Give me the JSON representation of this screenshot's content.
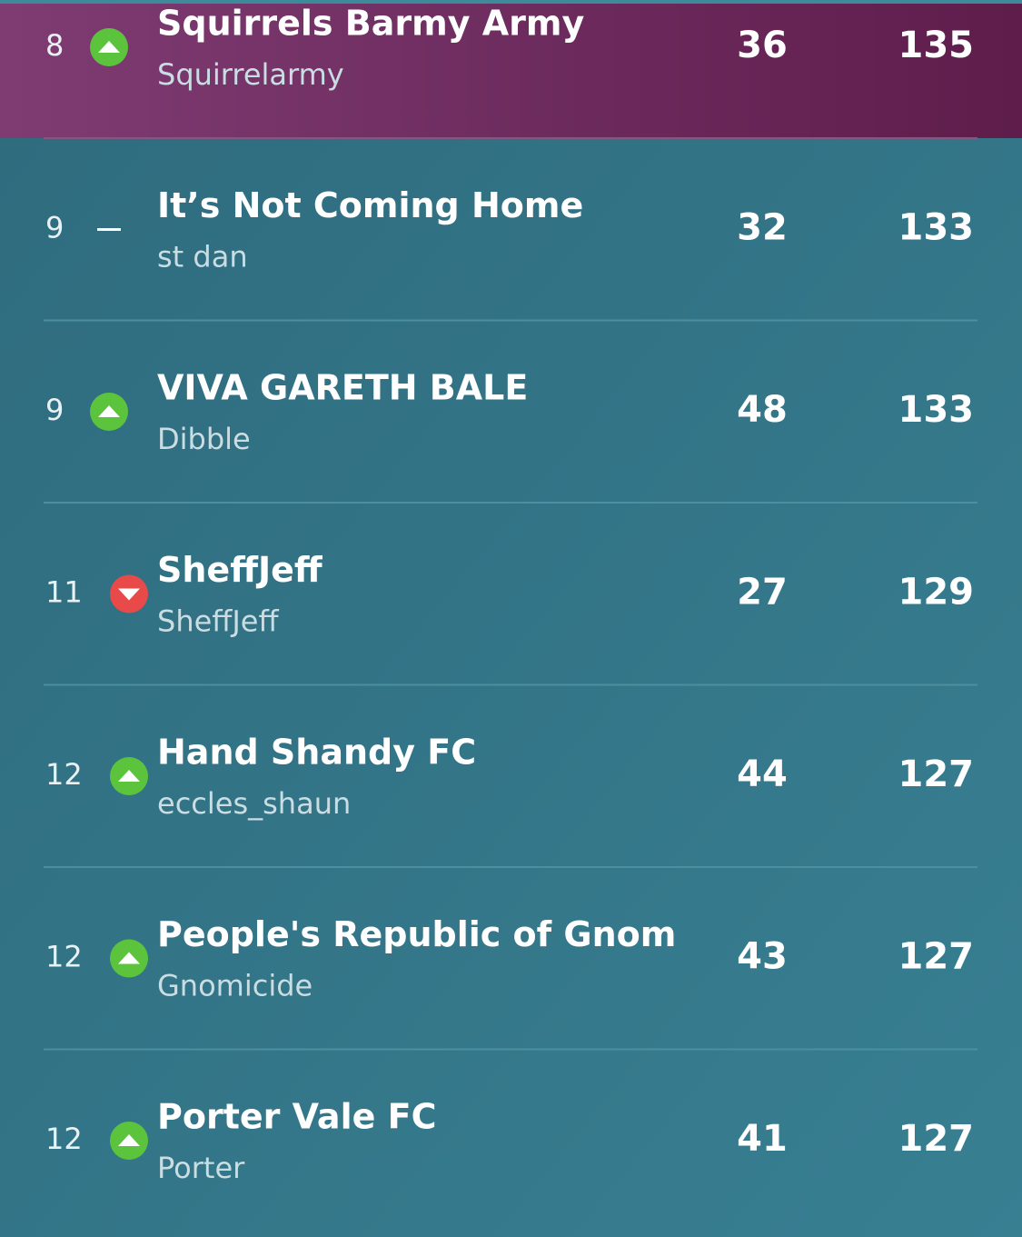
{
  "table": {
    "rows": [
      {
        "rank": 8,
        "movement": "up",
        "team": "Squirrels Barmy Army",
        "manager": "Squirrelarmy",
        "gw": 36,
        "total": 135,
        "highlighted": true
      },
      {
        "rank": 9,
        "movement": "same",
        "team": "It’s Not Coming Home",
        "manager": "st dan",
        "gw": 32,
        "total": 133
      },
      {
        "rank": 9,
        "movement": "up",
        "team": "VIVA GARETH BALE",
        "manager": "Dibble",
        "gw": 48,
        "total": 133
      },
      {
        "rank": 11,
        "movement": "down",
        "team": "SheffJeff",
        "manager": "SheffJeff",
        "gw": 27,
        "total": 129
      },
      {
        "rank": 12,
        "movement": "up",
        "team": "Hand Shandy FC",
        "manager": "eccles_shaun",
        "gw": 44,
        "total": 127
      },
      {
        "rank": 12,
        "movement": "up",
        "team": "People's Republic of Gnom",
        "manager": "Gnomicide",
        "gw": 43,
        "total": 127
      },
      {
        "rank": 12,
        "movement": "up",
        "team": "Porter Vale FC",
        "manager": "Porter",
        "gw": 41,
        "total": 127
      }
    ]
  }
}
